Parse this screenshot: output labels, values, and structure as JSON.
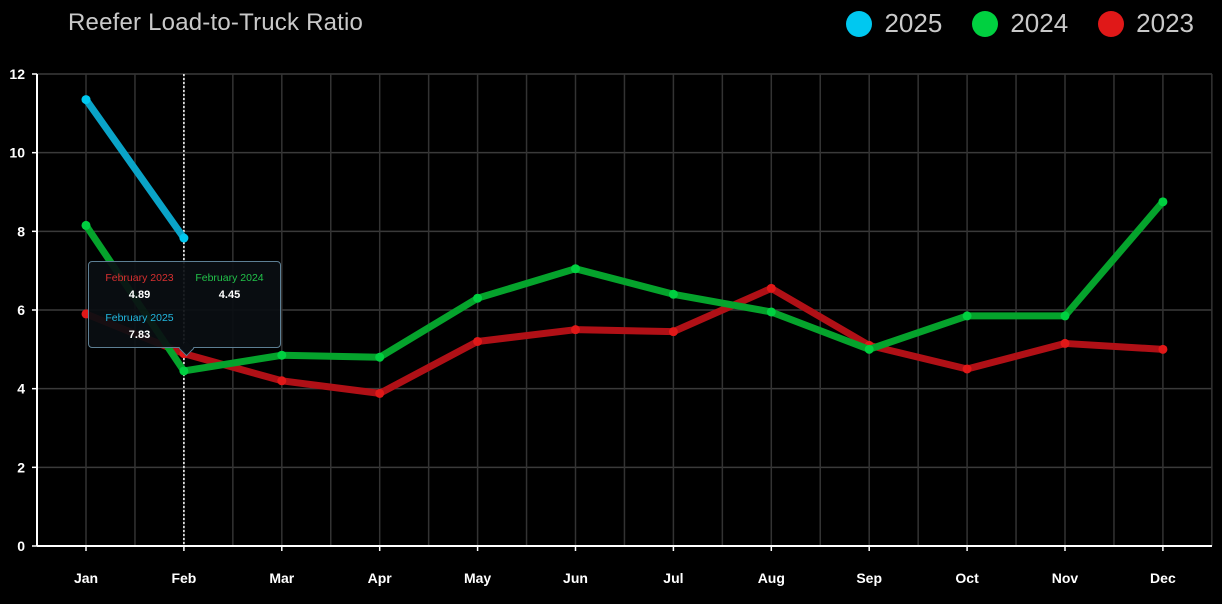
{
  "chart_data": {
    "type": "line",
    "title": "Reefer Load-to-Truck Ratio",
    "categories": [
      "Jan",
      "Feb",
      "Mar",
      "Apr",
      "May",
      "Jun",
      "Jul",
      "Aug",
      "Sep",
      "Oct",
      "Nov",
      "Dec"
    ],
    "ylim": [
      0,
      12
    ],
    "yticks": [
      "0",
      "2",
      "4",
      "6",
      "8",
      "10",
      "12"
    ],
    "grid": true,
    "legend_position": "top-right",
    "series": [
      {
        "name": "2025",
        "color": "#00c8f0",
        "line_color": "#0aa4c8",
        "values": [
          11.35,
          7.83,
          null,
          null,
          null,
          null,
          null,
          null,
          null,
          null,
          null,
          null
        ]
      },
      {
        "name": "2024",
        "color": "#00d040",
        "line_color": "#05a32c",
        "values": [
          8.15,
          4.45,
          4.85,
          4.8,
          6.3,
          7.05,
          6.4,
          5.95,
          5.0,
          5.85,
          5.85,
          8.75
        ]
      },
      {
        "name": "2023",
        "color": "#e01818",
        "line_color": "#b01016",
        "values": [
          5.9,
          4.89,
          4.2,
          3.88,
          5.2,
          5.5,
          5.45,
          6.55,
          5.1,
          4.5,
          5.15,
          5.0
        ]
      }
    ],
    "tooltip": {
      "category": "Feb",
      "entries": [
        {
          "label": "February 2023",
          "value": "4.89",
          "color": "#d83030"
        },
        {
          "label": "February 2024",
          "value": "4.45",
          "color": "#22c24a"
        },
        {
          "label": "February 2025",
          "value": "7.83",
          "color": "#22b8e0"
        }
      ]
    }
  }
}
